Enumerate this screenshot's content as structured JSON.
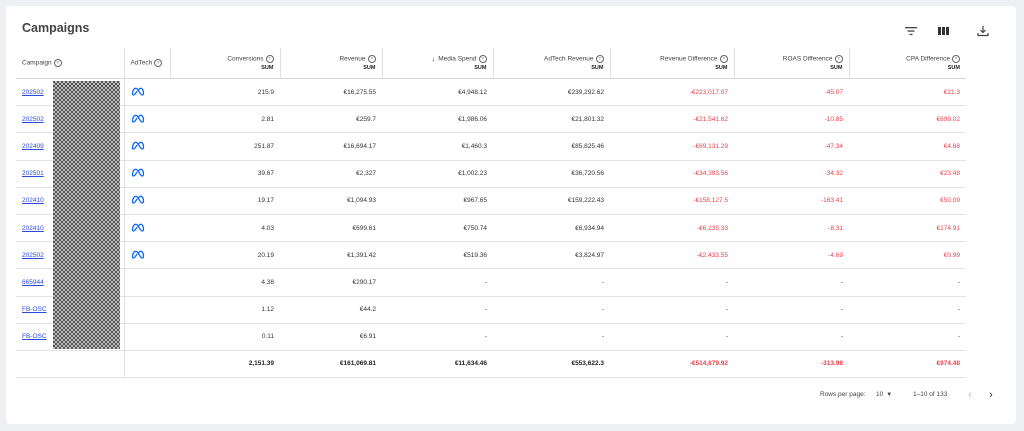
{
  "header": {
    "title": "Campaigns"
  },
  "toolbar": {
    "filter_icon": "filter-icon",
    "columns_icon": "columns-icon",
    "download_icon": "download-icon"
  },
  "columns": [
    {
      "label": "Campaign",
      "sum": ""
    },
    {
      "label": "AdTech",
      "sum": ""
    },
    {
      "label": "Conversions",
      "sum": "SUM"
    },
    {
      "label": "Revenue",
      "sum": "SUM"
    },
    {
      "label": "Media Spend",
      "sum": "SUM",
      "sorted": "descending"
    },
    {
      "label": "AdTech Revenue",
      "sum": "SUM"
    },
    {
      "label": "Revenue Difference",
      "sum": "SUM"
    },
    {
      "label": "ROAS Difference",
      "sum": "SUM"
    },
    {
      "label": "CPA Difference",
      "sum": "SUM"
    }
  ],
  "rows": [
    {
      "campaign": "202502",
      "adtech": "meta-icon",
      "conversions": "215.9",
      "revenue": "€16,275.55",
      "media_spend": "€4,948.12",
      "adtech_revenue": "€239,292.62",
      "revenue_diff": "-€223,017.07",
      "roas_diff": "-45.07",
      "cpa_diff": "€21.3"
    },
    {
      "campaign": "202502",
      "adtech": "meta-icon",
      "conversions": "2.81",
      "revenue": "€259.7",
      "media_spend": "€1,986.06",
      "adtech_revenue": "€21,801.32",
      "revenue_diff": "-€21,541.62",
      "roas_diff": "-10.85",
      "cpa_diff": "€699.02"
    },
    {
      "campaign": "202409",
      "adtech": "meta-icon",
      "conversions": "251.87",
      "revenue": "€16,694.17",
      "media_spend": "€1,460.3",
      "adtech_revenue": "€85,825.46",
      "revenue_diff": "-€69,131.29",
      "roas_diff": "-47.34",
      "cpa_diff": "€4.68"
    },
    {
      "campaign": "202501",
      "adtech": "meta-icon",
      "conversions": "39.67",
      "revenue": "€2,327",
      "media_spend": "€1,002.23",
      "adtech_revenue": "€36,720.56",
      "revenue_diff": "-€34,393.56",
      "roas_diff": "-34.32",
      "cpa_diff": "€23.48"
    },
    {
      "campaign": "202410",
      "adtech": "meta-icon",
      "conversions": "19.17",
      "revenue": "€1,094.93",
      "media_spend": "€967.65",
      "adtech_revenue": "€159,222.43",
      "revenue_diff": "-€158,127.5",
      "roas_diff": "-163.41",
      "cpa_diff": "€50.09"
    },
    {
      "campaign": "202410",
      "adtech": "meta-icon",
      "conversions": "4.03",
      "revenue": "€699.61",
      "media_spend": "€750.74",
      "adtech_revenue": "€6,934.94",
      "revenue_diff": "-€6,235.33",
      "roas_diff": "-8.31",
      "cpa_diff": "€174.91"
    },
    {
      "campaign": "202502",
      "adtech": "meta-icon",
      "conversions": "20.19",
      "revenue": "€1,391.42",
      "media_spend": "€519.36",
      "adtech_revenue": "€3,824.97",
      "revenue_diff": "-€2,433.55",
      "roas_diff": "-4.69",
      "cpa_diff": "€0.99"
    },
    {
      "campaign": "665944",
      "adtech": "",
      "conversions": "4.38",
      "revenue": "€290.17",
      "media_spend": "-",
      "adtech_revenue": "-",
      "revenue_diff": "-",
      "roas_diff": "-",
      "cpa_diff": "-"
    },
    {
      "campaign": "FB-OSC",
      "adtech": "",
      "conversions": "1.12",
      "revenue": "€44.2",
      "media_spend": "-",
      "adtech_revenue": "-",
      "revenue_diff": "-",
      "roas_diff": "-",
      "cpa_diff": "-"
    },
    {
      "campaign": "FB-OSC",
      "adtech": "",
      "conversions": "0.11",
      "revenue": "€6.91",
      "media_spend": "-",
      "adtech_revenue": "-",
      "revenue_diff": "-",
      "roas_diff": "-",
      "cpa_diff": "-"
    }
  ],
  "totals": {
    "conversions": "2,151.39",
    "revenue": "€161,069.81",
    "media_spend": "€11,634.46",
    "adtech_revenue": "€553,622.3",
    "revenue_diff": "-€514,879.92",
    "roas_diff": "-313.98",
    "cpa_diff": "€974.48"
  },
  "pagination": {
    "rows_per_page_label": "Rows per page:",
    "rows_per_page_value": "10",
    "range": "1–10 of 133"
  },
  "colors": {
    "negative": "#e8424a",
    "link": "#2a4bd7",
    "meta": "#0866ff"
  }
}
